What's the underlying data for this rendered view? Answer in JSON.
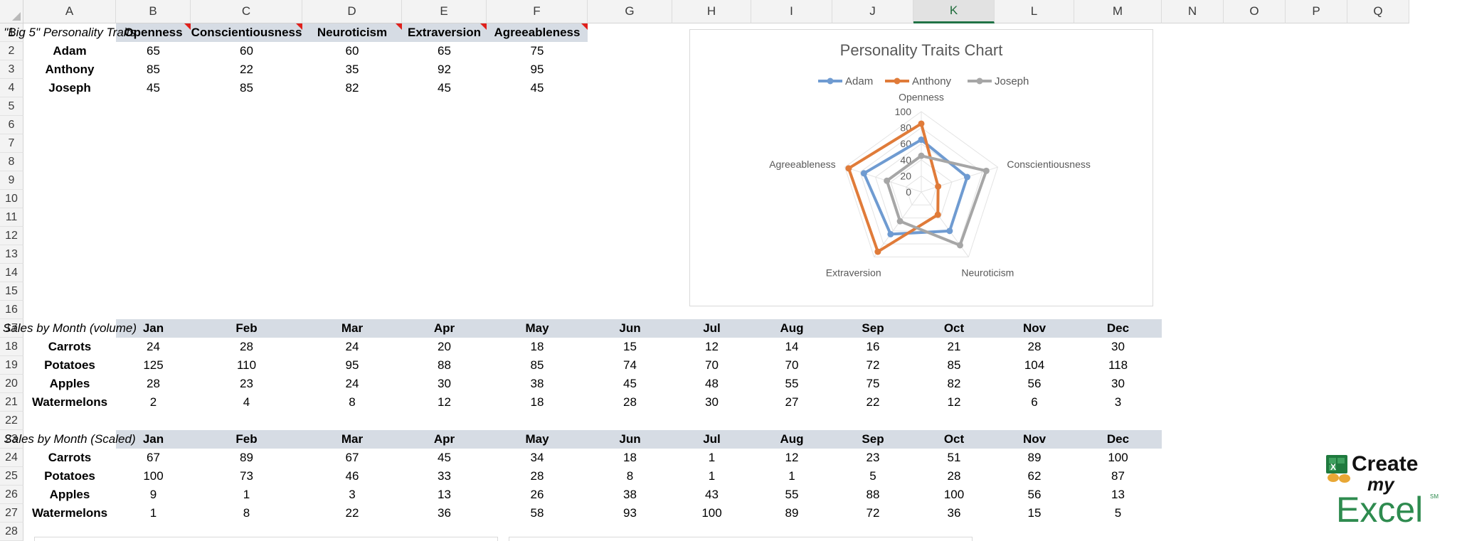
{
  "columns": [
    "A",
    "B",
    "C",
    "D",
    "E",
    "F",
    "G",
    "H",
    "I",
    "J",
    "K",
    "L",
    "M",
    "N",
    "O",
    "P",
    "Q"
  ],
  "selected_column": "K",
  "rows": [
    "1",
    "2",
    "3",
    "4",
    "5",
    "6",
    "7",
    "8",
    "9",
    "10",
    "11",
    "12",
    "13",
    "14",
    "15",
    "16",
    "17",
    "18",
    "19",
    "20",
    "21",
    "22",
    "23",
    "24",
    "25",
    "26",
    "27",
    "28"
  ],
  "traits": {
    "title": "\"Big 5\" Personality Traits",
    "headers": [
      "Openness",
      "Conscientiousness",
      "Neuroticism",
      "Extraversion",
      "Agreeableness"
    ],
    "people": [
      {
        "name": "Adam",
        "values": [
          "65",
          "60",
          "60",
          "65",
          "75"
        ]
      },
      {
        "name": "Anthony",
        "values": [
          "85",
          "22",
          "35",
          "92",
          "95"
        ]
      },
      {
        "name": "Joseph",
        "values": [
          "45",
          "85",
          "82",
          "45",
          "45"
        ]
      }
    ]
  },
  "sales_volume": {
    "title": "Sales by Month (volume)",
    "months": [
      "Jan",
      "Feb",
      "Mar",
      "Apr",
      "May",
      "Jun",
      "Jul",
      "Aug",
      "Sep",
      "Oct",
      "Nov",
      "Dec"
    ],
    "items": [
      {
        "name": "Carrots",
        "values": [
          "24",
          "28",
          "24",
          "20",
          "18",
          "15",
          "12",
          "14",
          "16",
          "21",
          "28",
          "30"
        ]
      },
      {
        "name": "Potatoes",
        "values": [
          "125",
          "110",
          "95",
          "88",
          "85",
          "74",
          "70",
          "70",
          "72",
          "85",
          "104",
          "118"
        ]
      },
      {
        "name": "Apples",
        "values": [
          "28",
          "23",
          "24",
          "30",
          "38",
          "45",
          "48",
          "55",
          "75",
          "82",
          "56",
          "30"
        ]
      },
      {
        "name": "Watermelons",
        "values": [
          "2",
          "4",
          "8",
          "12",
          "18",
          "28",
          "30",
          "27",
          "22",
          "12",
          "6",
          "3"
        ]
      }
    ]
  },
  "sales_scaled": {
    "title": "Sales by Month (Scaled)",
    "months": [
      "Jan",
      "Feb",
      "Mar",
      "Apr",
      "May",
      "Jun",
      "Jul",
      "Aug",
      "Sep",
      "Oct",
      "Nov",
      "Dec"
    ],
    "items": [
      {
        "name": "Carrots",
        "values": [
          "67",
          "89",
          "67",
          "45",
          "34",
          "18",
          "1",
          "12",
          "23",
          "51",
          "89",
          "100"
        ]
      },
      {
        "name": "Potatoes",
        "values": [
          "100",
          "73",
          "46",
          "33",
          "28",
          "8",
          "1",
          "1",
          "5",
          "28",
          "62",
          "87"
        ]
      },
      {
        "name": "Apples",
        "values": [
          "9",
          "1",
          "3",
          "13",
          "26",
          "38",
          "43",
          "55",
          "88",
          "100",
          "56",
          "13"
        ]
      },
      {
        "name": "Watermelons",
        "values": [
          "1",
          "8",
          "22",
          "36",
          "58",
          "93",
          "100",
          "89",
          "72",
          "36",
          "15",
          "5"
        ]
      }
    ]
  },
  "chart_data": {
    "type": "radar",
    "title": "Personality Traits Chart",
    "categories": [
      "Openness",
      "Conscientiousness",
      "Neuroticism",
      "Extraversion",
      "Agreeableness"
    ],
    "series": [
      {
        "name": "Adam",
        "values": [
          65,
          60,
          60,
          65,
          75
        ],
        "color": "#6f9bd1"
      },
      {
        "name": "Anthony",
        "values": [
          85,
          22,
          35,
          92,
          95
        ],
        "color": "#e07b39"
      },
      {
        "name": "Joseph",
        "values": [
          45,
          85,
          82,
          45,
          45
        ],
        "color": "#a6a6a6"
      }
    ],
    "range": [
      0,
      100
    ],
    "ticks": [
      "0",
      "20",
      "40",
      "60",
      "80",
      "100"
    ],
    "legend": "top",
    "grid": true
  },
  "logo": {
    "line1": "Create",
    "line2": "my",
    "line3": "Excel",
    "mark": "SM"
  }
}
